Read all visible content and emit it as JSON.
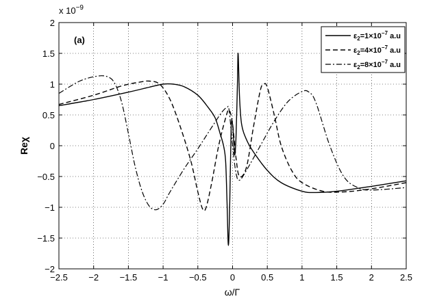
{
  "chart_data": {
    "type": "line",
    "title": "",
    "panel_label": "(a)",
    "xlabel": "ω/Γ",
    "ylabel": "Reχ",
    "y_multiplier_label": "x 10",
    "y_multiplier_exponent": "−9",
    "xlim": [
      -2.5,
      2.5
    ],
    "ylim": [
      -2,
      2
    ],
    "xticks": [
      -2.5,
      -2,
      -1.5,
      -1,
      -0.5,
      0,
      0.5,
      1,
      1.5,
      2,
      2.5
    ],
    "xtick_labels": [
      "−2.5",
      "−2",
      "−1.5",
      "−1",
      "−0.5",
      "0",
      "0.5",
      "1",
      "1.5",
      "2",
      "2.5"
    ],
    "yticks": [
      -2,
      -1.5,
      -1,
      -0.5,
      0,
      0.5,
      1,
      1.5,
      2
    ],
    "ytick_labels": [
      "−2",
      "−1.5",
      "−1",
      "−0.5",
      "0",
      "0.5",
      "1",
      "1.5",
      "2"
    ],
    "grid": true,
    "legend_position": "top-right",
    "series": [
      {
        "name": "ε2=1×10−7 a.u",
        "legend_parts": {
          "eps": "ε",
          "sub": "2",
          "mid": "=1×10",
          "sup": "−7",
          "tail": " a.u"
        },
        "style": "solid",
        "x": [
          -2.5,
          -2.0,
          -1.5,
          -1.2,
          -1.0,
          -0.85,
          -0.7,
          -0.5,
          -0.35,
          -0.25,
          -0.18,
          -0.13,
          -0.1,
          -0.08,
          -0.06,
          -0.04,
          -0.02,
          0.0,
          0.01,
          0.03,
          0.05,
          0.07,
          0.08,
          0.1,
          0.13,
          0.2,
          0.3,
          0.5,
          0.7,
          1.0,
          1.2,
          1.5,
          2.0,
          2.5
        ],
        "y": [
          0.65,
          0.75,
          0.87,
          0.95,
          1.0,
          1.0,
          0.96,
          0.82,
          0.62,
          0.45,
          0.2,
          0.0,
          -0.25,
          -0.9,
          -1.62,
          -0.9,
          0.3,
          0.35,
          0.2,
          -0.15,
          0.15,
          1.0,
          1.5,
          0.8,
          0.35,
          0.1,
          -0.1,
          -0.4,
          -0.6,
          -0.74,
          -0.76,
          -0.74,
          -0.66,
          -0.57
        ]
      },
      {
        "name": "ε2=4×10−7 a.u",
        "legend_parts": {
          "eps": "ε",
          "sub": "2",
          "mid": "=4×10",
          "sup": "−7",
          "tail": " a.u"
        },
        "style": "dashed",
        "x": [
          -2.5,
          -2.0,
          -1.6,
          -1.35,
          -1.2,
          -1.05,
          -0.9,
          -0.75,
          -0.6,
          -0.5,
          -0.43,
          -0.38,
          -0.3,
          -0.2,
          -0.1,
          -0.05,
          0.0,
          0.05,
          0.1,
          0.2,
          0.3,
          0.4,
          0.45,
          0.5,
          0.6,
          0.7,
          0.85,
          1.0,
          1.3,
          1.6,
          2.0,
          2.5
        ],
        "y": [
          0.67,
          0.82,
          0.97,
          1.03,
          1.05,
          1.0,
          0.75,
          0.3,
          -0.25,
          -0.75,
          -1.03,
          -1.0,
          -0.6,
          0.0,
          0.45,
          0.58,
          0.35,
          -0.2,
          -0.5,
          -0.35,
          0.3,
          0.9,
          1.0,
          0.95,
          0.5,
          0.0,
          -0.4,
          -0.6,
          -0.74,
          -0.75,
          -0.7,
          -0.6
        ]
      },
      {
        "name": "ε2=8×10−7 a.u",
        "legend_parts": {
          "eps": "ε",
          "sub": "2",
          "mid": "=8×10",
          "sup": "−7",
          "tail": " a.u"
        },
        "style": "dashdot",
        "x": [
          -2.5,
          -2.2,
          -1.95,
          -1.8,
          -1.7,
          -1.6,
          -1.5,
          -1.4,
          -1.3,
          -1.2,
          -1.1,
          -1.0,
          -0.9,
          -0.7,
          -0.5,
          -0.3,
          -0.15,
          -0.08,
          -0.05,
          0.0,
          0.05,
          0.1,
          0.2,
          0.4,
          0.6,
          0.8,
          1.0,
          1.1,
          1.2,
          1.4,
          1.6,
          1.8,
          2.0,
          2.5
        ],
        "y": [
          0.85,
          1.05,
          1.13,
          1.12,
          1.02,
          0.72,
          0.2,
          -0.35,
          -0.75,
          -0.98,
          -1.04,
          -0.95,
          -0.75,
          -0.38,
          -0.05,
          0.3,
          0.55,
          0.62,
          0.58,
          0.0,
          -0.45,
          -0.56,
          -0.4,
          0.0,
          0.4,
          0.72,
          0.88,
          0.87,
          0.7,
          0.0,
          -0.5,
          -0.68,
          -0.72,
          -0.68
        ]
      }
    ]
  }
}
